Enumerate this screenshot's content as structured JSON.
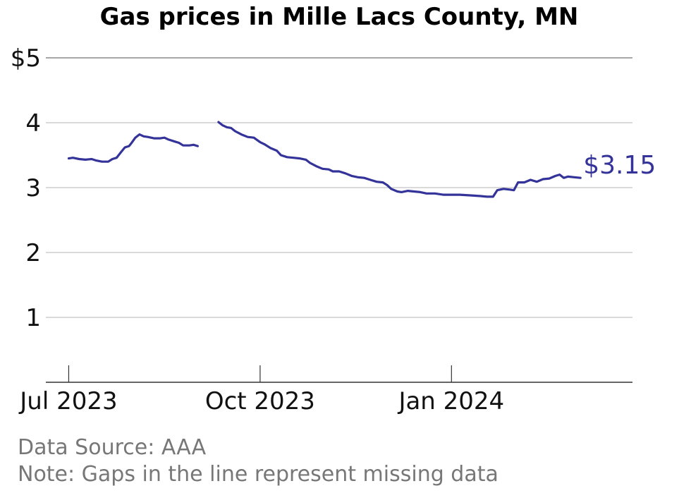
{
  "chart_data": {
    "type": "line",
    "title": "Gas prices in Mille Lacs County, MN",
    "xlabel": "",
    "ylabel": "",
    "ylim": [
      0,
      5
    ],
    "yticks": [
      1,
      2,
      3,
      4,
      5
    ],
    "ytick_labels": [
      "1",
      "2",
      "3",
      "4",
      "$5"
    ],
    "xticks": [
      "2023-07-01",
      "2023-10-01",
      "2024-01-01"
    ],
    "xtick_labels": [
      "Jul 2023",
      "Oct 2023",
      "Jan 2024"
    ],
    "x_range": [
      "2023-06-20",
      "2024-03-28"
    ],
    "grid": "horizontal",
    "line_color": "#33339a",
    "end_label": "$3.15",
    "series": [
      {
        "segments": [
          [
            [
              "2023-07-01",
              3.45
            ],
            [
              "2023-07-03",
              3.46
            ],
            [
              "2023-07-06",
              3.44
            ],
            [
              "2023-07-09",
              3.43
            ],
            [
              "2023-07-12",
              3.44
            ],
            [
              "2023-07-14",
              3.42
            ],
            [
              "2023-07-17",
              3.4
            ],
            [
              "2023-07-20",
              3.4
            ],
            [
              "2023-07-22",
              3.44
            ],
            [
              "2023-07-24",
              3.46
            ],
            [
              "2023-07-26",
              3.54
            ],
            [
              "2023-07-28",
              3.62
            ],
            [
              "2023-07-30",
              3.64
            ],
            [
              "2023-07-31",
              3.68
            ],
            [
              "2023-08-02",
              3.77
            ],
            [
              "2023-08-04",
              3.82
            ],
            [
              "2023-08-06",
              3.79
            ],
            [
              "2023-08-08",
              3.78
            ],
            [
              "2023-08-11",
              3.76
            ],
            [
              "2023-08-14",
              3.76
            ],
            [
              "2023-08-16",
              3.77
            ],
            [
              "2023-08-18",
              3.74
            ],
            [
              "2023-08-21",
              3.71
            ],
            [
              "2023-08-23",
              3.69
            ],
            [
              "2023-08-25",
              3.65
            ],
            [
              "2023-08-28",
              3.65
            ],
            [
              "2023-08-30",
              3.66
            ],
            [
              "2023-09-01",
              3.64
            ]
          ],
          [
            [
              "2023-09-11",
              4.01
            ],
            [
              "2023-09-13",
              3.96
            ],
            [
              "2023-09-15",
              3.93
            ],
            [
              "2023-09-17",
              3.92
            ],
            [
              "2023-09-19",
              3.87
            ],
            [
              "2023-09-22",
              3.82
            ],
            [
              "2023-09-25",
              3.78
            ],
            [
              "2023-09-28",
              3.77
            ],
            [
              "2023-10-01",
              3.7
            ],
            [
              "2023-10-03",
              3.67
            ],
            [
              "2023-10-06",
              3.61
            ],
            [
              "2023-10-09",
              3.57
            ],
            [
              "2023-10-11",
              3.5
            ],
            [
              "2023-10-14",
              3.47
            ],
            [
              "2023-10-17",
              3.46
            ],
            [
              "2023-10-20",
              3.45
            ],
            [
              "2023-10-23",
              3.43
            ],
            [
              "2023-10-25",
              3.38
            ],
            [
              "2023-10-28",
              3.33
            ],
            [
              "2023-10-31",
              3.29
            ],
            [
              "2023-11-03",
              3.28
            ],
            [
              "2023-11-05",
              3.25
            ],
            [
              "2023-11-08",
              3.25
            ],
            [
              "2023-11-11",
              3.22
            ],
            [
              "2023-11-14",
              3.18
            ],
            [
              "2023-11-17",
              3.16
            ],
            [
              "2023-11-20",
              3.15
            ],
            [
              "2023-11-23",
              3.12
            ],
            [
              "2023-11-26",
              3.09
            ],
            [
              "2023-11-29",
              3.08
            ],
            [
              "2023-12-01",
              3.04
            ],
            [
              "2023-12-03",
              2.98
            ],
            [
              "2023-12-06",
              2.94
            ],
            [
              "2023-12-08",
              2.93
            ],
            [
              "2023-12-11",
              2.95
            ],
            [
              "2023-12-14",
              2.94
            ],
            [
              "2023-12-17",
              2.93
            ],
            [
              "2023-12-20",
              2.91
            ],
            [
              "2023-12-24",
              2.91
            ],
            [
              "2023-12-28",
              2.89
            ],
            [
              "2024-01-01",
              2.89
            ],
            [
              "2024-01-05",
              2.89
            ],
            [
              "2024-01-10",
              2.88
            ],
            [
              "2024-01-15",
              2.87
            ],
            [
              "2024-01-18",
              2.86
            ],
            [
              "2024-01-21",
              2.86
            ],
            [
              "2024-01-23",
              2.96
            ],
            [
              "2024-01-26",
              2.98
            ],
            [
              "2024-01-29",
              2.97
            ],
            [
              "2024-01-31",
              2.96
            ],
            [
              "2024-02-02",
              3.08
            ],
            [
              "2024-02-05",
              3.08
            ],
            [
              "2024-02-08",
              3.12
            ],
            [
              "2024-02-11",
              3.09
            ],
            [
              "2024-02-14",
              3.13
            ],
            [
              "2024-02-17",
              3.14
            ],
            [
              "2024-02-20",
              3.18
            ],
            [
              "2024-02-22",
              3.2
            ],
            [
              "2024-02-24",
              3.15
            ],
            [
              "2024-02-26",
              3.17
            ],
            [
              "2024-02-29",
              3.16
            ],
            [
              "2024-03-03",
              3.15
            ]
          ]
        ]
      }
    ]
  },
  "footer": {
    "source": "Data Source: AAA",
    "note": "Note: Gaps in the line represent missing data"
  }
}
